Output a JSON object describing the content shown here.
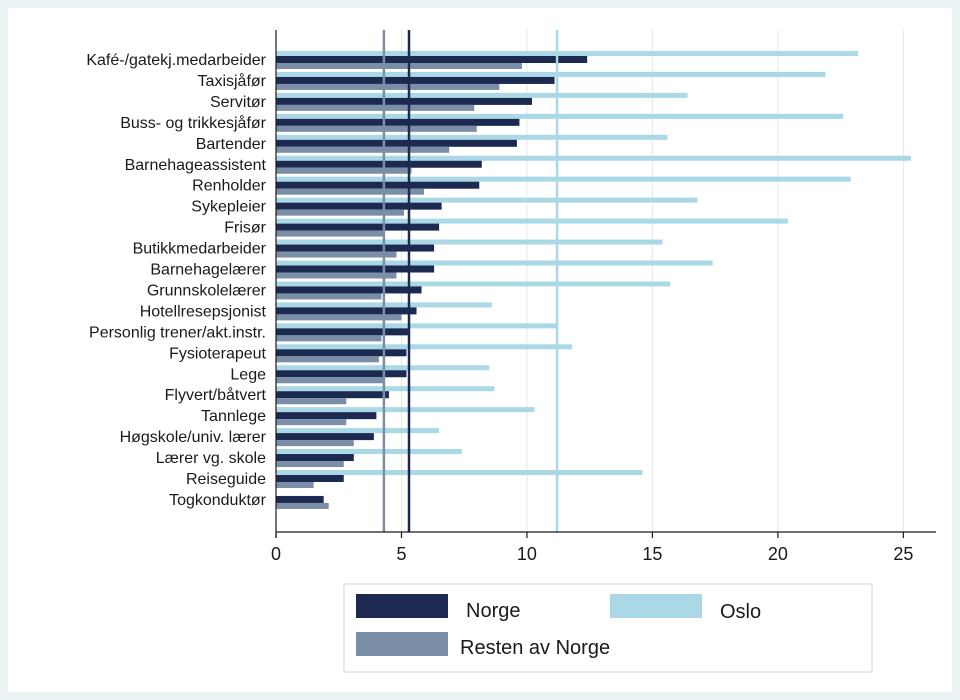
{
  "chart_data": {
    "type": "bar",
    "orientation": "horizontal",
    "categories": [
      "Kafé-/gatekj.medarbeider",
      "Taxisjåfør",
      "Servitør",
      "Buss- og trikkesjåfør",
      "Bartender",
      "Barnehageassistent",
      "Renholder",
      "Sykepleier",
      "Frisør",
      "Butikkmedarbeider",
      "Barnehagelærer",
      "Grunnskolelærer",
      "Hotellresepsjonist",
      "Personlig trener/akt.instr.",
      "Fysioterapeut",
      "Lege",
      "Flyvert/båtvert",
      "Tannlege",
      "Høgskole/univ. lærer",
      "Lærer vg. skole",
      "Reiseguide",
      "Togkonduktør"
    ],
    "series": [
      {
        "name": "Oslo",
        "color": "#aad8e6",
        "values": [
          23.2,
          21.9,
          16.4,
          22.6,
          15.6,
          25.3,
          22.9,
          16.8,
          20.4,
          15.4,
          17.4,
          15.7,
          8.6,
          11.2,
          11.8,
          8.5,
          8.7,
          10.3,
          6.5,
          7.4,
          14.6,
          0
        ]
      },
      {
        "name": "Norge",
        "color": "#1c2951",
        "values": [
          12.4,
          11.1,
          10.2,
          9.7,
          9.6,
          8.2,
          8.1,
          6.6,
          6.5,
          6.3,
          6.3,
          5.8,
          5.6,
          5.3,
          5.2,
          5.2,
          4.5,
          4.0,
          3.9,
          3.1,
          2.7,
          1.9
        ]
      },
      {
        "name": "Resten av Norge",
        "color": "#7b8ea8",
        "values": [
          9.8,
          8.9,
          7.9,
          8.0,
          6.9,
          5.4,
          5.9,
          5.1,
          4.3,
          4.8,
          4.8,
          4.2,
          5.0,
          4.2,
          4.1,
          4.3,
          2.8,
          2.8,
          3.1,
          2.7,
          1.5,
          2.1
        ]
      }
    ],
    "reference_lines": [
      {
        "series": "Resten av Norge",
        "value": 4.3,
        "color": "#7b8ea8"
      },
      {
        "series": "Norge",
        "value": 5.3,
        "color": "#1c2951"
      },
      {
        "series": "Oslo",
        "value": 11.2,
        "color": "#aad8e6"
      }
    ],
    "xticks": [
      0,
      5,
      10,
      15,
      20,
      25
    ],
    "xtick_labels": [
      "0",
      "5",
      "10",
      "15",
      "20",
      "25"
    ],
    "xlim": [
      0,
      26.3
    ],
    "grid": "vertical",
    "legend": {
      "position": "bottom",
      "entries": [
        {
          "label": "Norge",
          "color": "#1c2951"
        },
        {
          "label": "Oslo",
          "color": "#aad8e6"
        },
        {
          "label": "Resten av Norge",
          "color": "#7b8ea8"
        }
      ]
    }
  }
}
